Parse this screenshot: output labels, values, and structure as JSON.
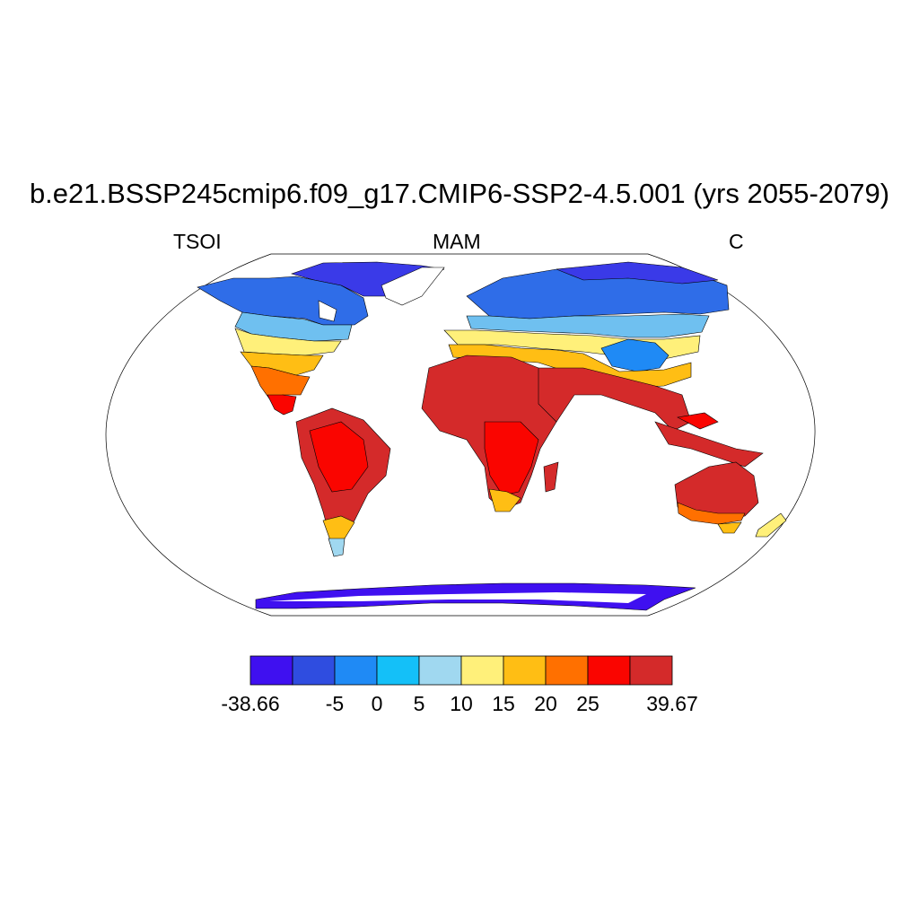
{
  "title": "b.e21.BSSP245cmip6.f09_g17.CMIP6-SSP2-4.5.001 (yrs 2055-2079)",
  "subtitle_left": "TSOI",
  "subtitle_center": "MAM",
  "subtitle_right": "C",
  "colorbar": {
    "colors": [
      "#3f10f0",
      "#2f4de0",
      "#1f8af5",
      "#14c0f8",
      "#a0d8f0",
      "#fff07a",
      "#ffbe14",
      "#ff7000",
      "#fa0500",
      "#d42a2a"
    ],
    "labels": [
      "-38.66",
      "-5",
      "0",
      "5",
      "10",
      "15",
      "20",
      "25",
      "39.67"
    ],
    "label_boundaries": [
      0,
      2,
      3,
      4,
      5,
      6,
      7,
      8,
      10
    ]
  }
}
